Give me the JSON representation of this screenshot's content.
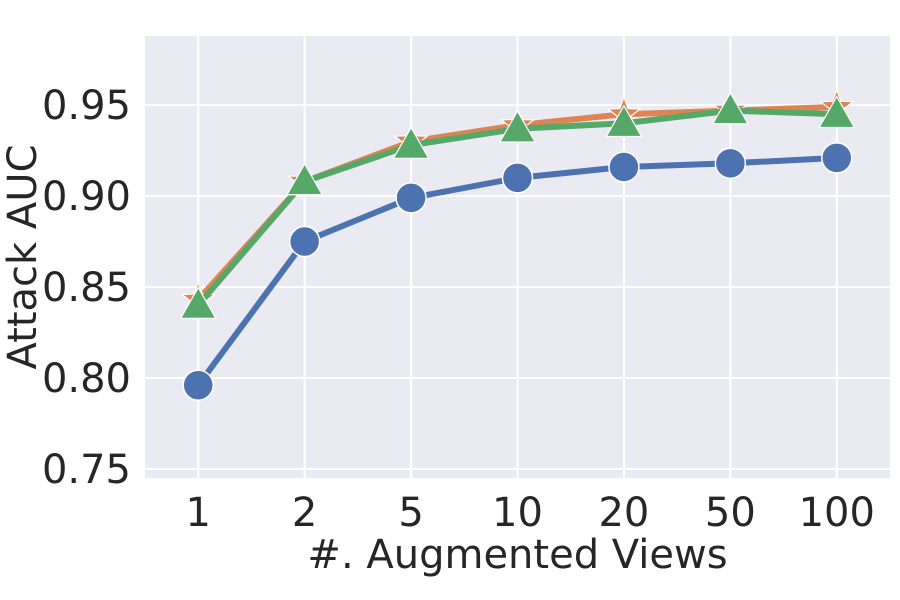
{
  "chart_data": {
    "type": "line",
    "xlabel": "#. Augmented Views",
    "ylabel": "Attack AUC",
    "categories": [
      "1",
      "2",
      "5",
      "10",
      "20",
      "50",
      "100"
    ],
    "ylim": [
      0.745,
      0.988
    ],
    "yticks": [
      "0.75",
      "0.80",
      "0.85",
      "0.90",
      "0.95"
    ],
    "grid": true,
    "background": "#eaeaf2",
    "series": [
      {
        "color": "#4c72b0",
        "marker": "circle",
        "values": [
          0.796,
          0.875,
          0.899,
          0.91,
          0.916,
          0.918,
          0.921
        ]
      },
      {
        "color": "#dd8452",
        "marker": "star",
        "values": [
          0.843,
          0.908,
          0.93,
          0.939,
          0.945,
          0.947,
          0.949
        ]
      },
      {
        "color": "#55a868",
        "marker": "triangle",
        "values": [
          0.84,
          0.908,
          0.928,
          0.937,
          0.94,
          0.947,
          0.945
        ]
      }
    ]
  }
}
